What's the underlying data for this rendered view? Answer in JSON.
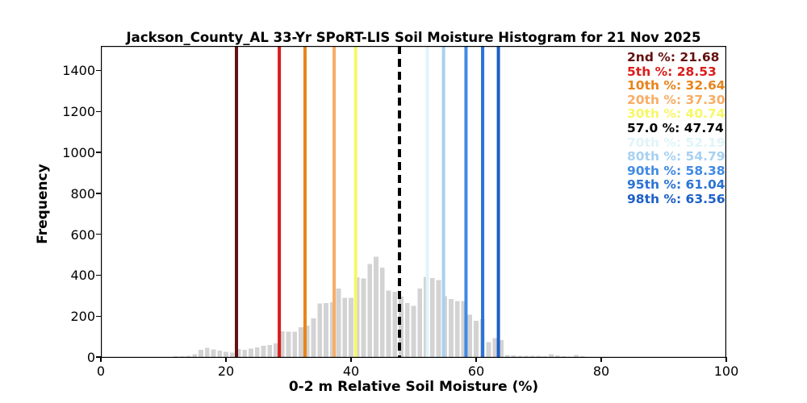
{
  "figure": {
    "title": "Jackson_County_AL 33-Yr SPoRT-LIS Soil Moisture Histogram for 21 Nov 2025",
    "xlabel": "0-2 m Relative Soil Moisture (%)",
    "ylabel": "Frequency"
  },
  "chart_data": {
    "type": "bar",
    "subtype": "histogram",
    "title": "Jackson_County_AL 33-Yr SPoRT-LIS Soil Moisture Histogram for 21 Nov 2025",
    "xlabel": "0-2 m Relative Soil Moisture (%)",
    "ylabel": "Frequency",
    "xlim": [
      0,
      100
    ],
    "ylim": [
      0,
      1520
    ],
    "x_ticks": [
      0,
      20,
      40,
      60,
      80,
      100
    ],
    "y_ticks": [
      0,
      200,
      400,
      600,
      800,
      1000,
      1200,
      1400
    ],
    "grid": false,
    "bar_color": "#d3d3d3",
    "axis_color": "#000000",
    "legend_position": "top-right-inside",
    "bin_width": 1,
    "bin_centers": [
      12,
      13,
      14,
      15,
      16,
      17,
      18,
      19,
      20,
      21,
      22,
      23,
      24,
      25,
      26,
      27,
      28,
      29,
      30,
      31,
      32,
      33,
      34,
      35,
      36,
      37,
      38,
      39,
      40,
      41,
      42,
      43,
      44,
      45,
      46,
      47,
      48,
      49,
      50,
      51,
      52,
      53,
      54,
      55,
      56,
      57,
      58,
      59,
      60,
      61,
      62,
      63,
      64,
      65,
      66,
      67,
      68,
      69,
      70,
      71,
      72,
      73,
      74,
      75,
      76,
      77
    ],
    "frequencies": [
      4,
      4,
      6,
      13,
      36,
      45,
      38,
      32,
      26,
      21,
      40,
      35,
      42,
      48,
      55,
      60,
      67,
      126,
      125,
      125,
      145,
      154,
      190,
      262,
      263,
      268,
      335,
      289,
      289,
      390,
      384,
      455,
      490,
      437,
      325,
      319,
      295,
      263,
      251,
      335,
      392,
      386,
      377,
      297,
      284,
      274,
      273,
      206,
      178,
      186,
      73,
      92,
      82,
      10,
      8,
      6,
      6,
      5,
      5,
      4,
      13,
      7,
      3,
      2,
      10,
      4
    ],
    "percentile_lines": [
      {
        "label": "2nd %: 21.68",
        "percentile": "2nd",
        "value": 21.68,
        "color": "#651010",
        "style": "solid"
      },
      {
        "label": "5th %: 28.53",
        "percentile": "5th",
        "value": 28.53,
        "color": "#da1c1a",
        "style": "solid"
      },
      {
        "label": "10th %: 32.64",
        "percentile": "10th",
        "value": 32.64,
        "color": "#e8841c",
        "style": "solid"
      },
      {
        "label": "20th %: 37.30",
        "percentile": "20th",
        "value": 37.3,
        "color": "#f8ad66",
        "style": "solid"
      },
      {
        "label": "30th %: 40.74",
        "percentile": "30th",
        "value": 40.74,
        "color": "#f7f766",
        "style": "solid"
      },
      {
        "label": "57.0 %: 47.74",
        "percentile": "57.0",
        "value": 47.74,
        "color": "#000000",
        "style": "dashed"
      },
      {
        "label": "70th %: 52.19",
        "percentile": "70th",
        "value": 52.19,
        "color": "#e0f4fa",
        "style": "solid"
      },
      {
        "label": "80th %: 54.79",
        "percentile": "80th",
        "value": 54.79,
        "color": "#a7d1f0",
        "style": "solid"
      },
      {
        "label": "90th %: 58.38",
        "percentile": "90th",
        "value": 58.38,
        "color": "#418ae4",
        "style": "solid"
      },
      {
        "label": "95th %: 61.04",
        "percentile": "95th",
        "value": 61.04,
        "color": "#2b73d6",
        "style": "solid"
      },
      {
        "label": "98th %: 63.56",
        "percentile": "98th",
        "value": 63.56,
        "color": "#1c5fc8",
        "style": "solid"
      }
    ]
  }
}
